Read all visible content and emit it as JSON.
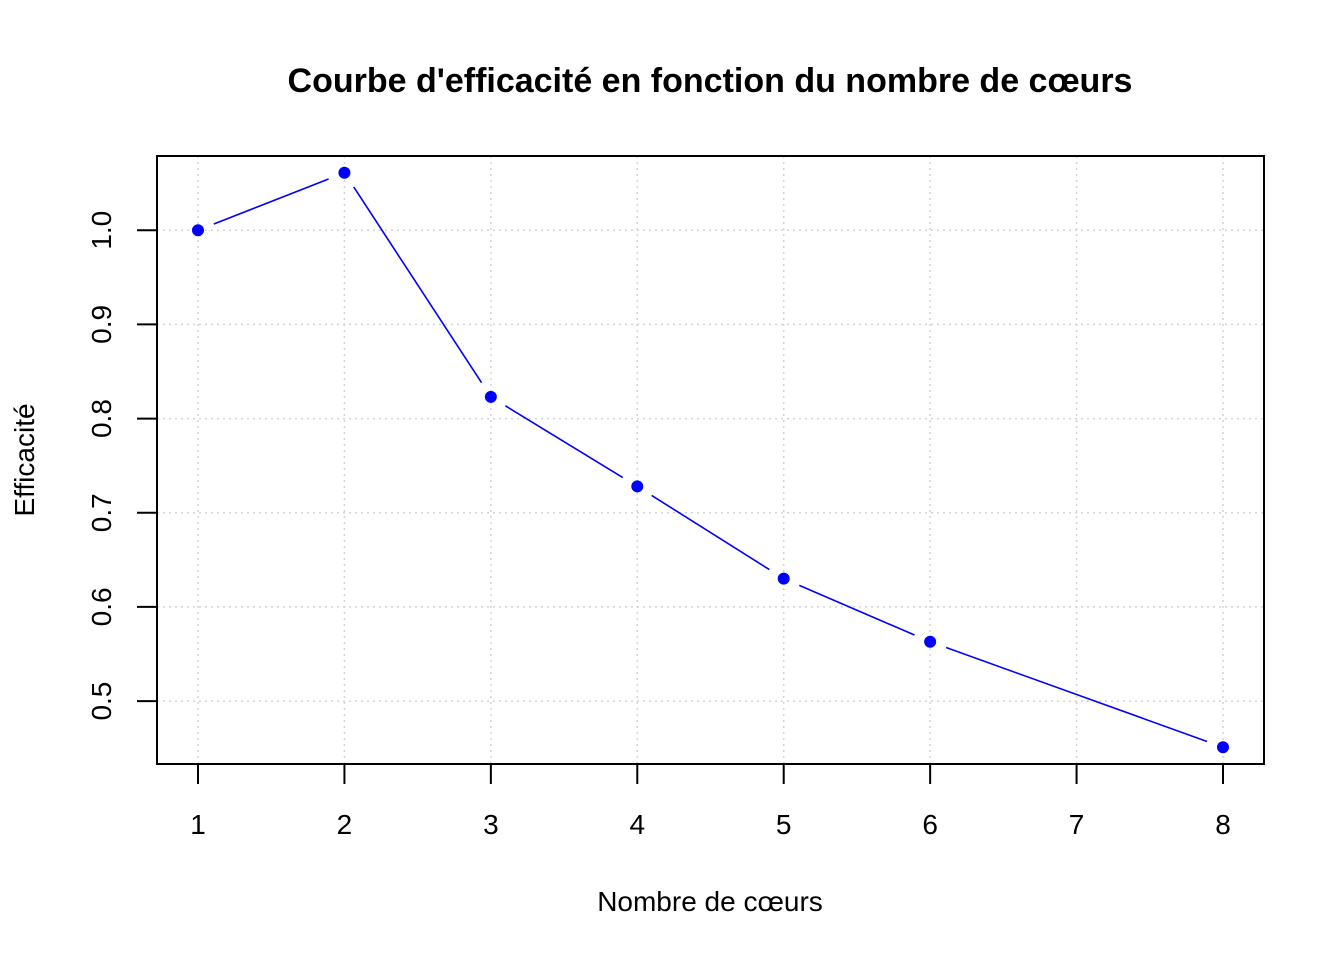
{
  "chart_data": {
    "type": "line",
    "title": "Courbe d'efficacité en fonction du nombre de cœurs",
    "xlabel": "Nombre de cœurs",
    "ylabel": "Efficacité",
    "x": [
      1,
      2,
      3,
      4,
      5,
      6,
      8
    ],
    "series": [
      {
        "values": [
          1.0,
          1.061,
          0.823,
          0.728,
          0.63,
          0.563,
          0.451
        ]
      }
    ],
    "xticks": [
      1,
      2,
      3,
      4,
      5,
      6,
      7,
      8
    ],
    "yticks": [
      0.5,
      0.6,
      0.7,
      0.8,
      0.9,
      1.0
    ],
    "ytick_labels": [
      "0.5",
      "0.6",
      "0.7",
      "0.8",
      "0.9",
      "1.0"
    ],
    "xlim": [
      0.72,
      8.28
    ],
    "ylim": [
      0.4332,
      1.0788
    ],
    "grid": true,
    "line_color": "#0000ff",
    "marker_color": "#0000ff",
    "grid_color": "#d3d3d3"
  }
}
